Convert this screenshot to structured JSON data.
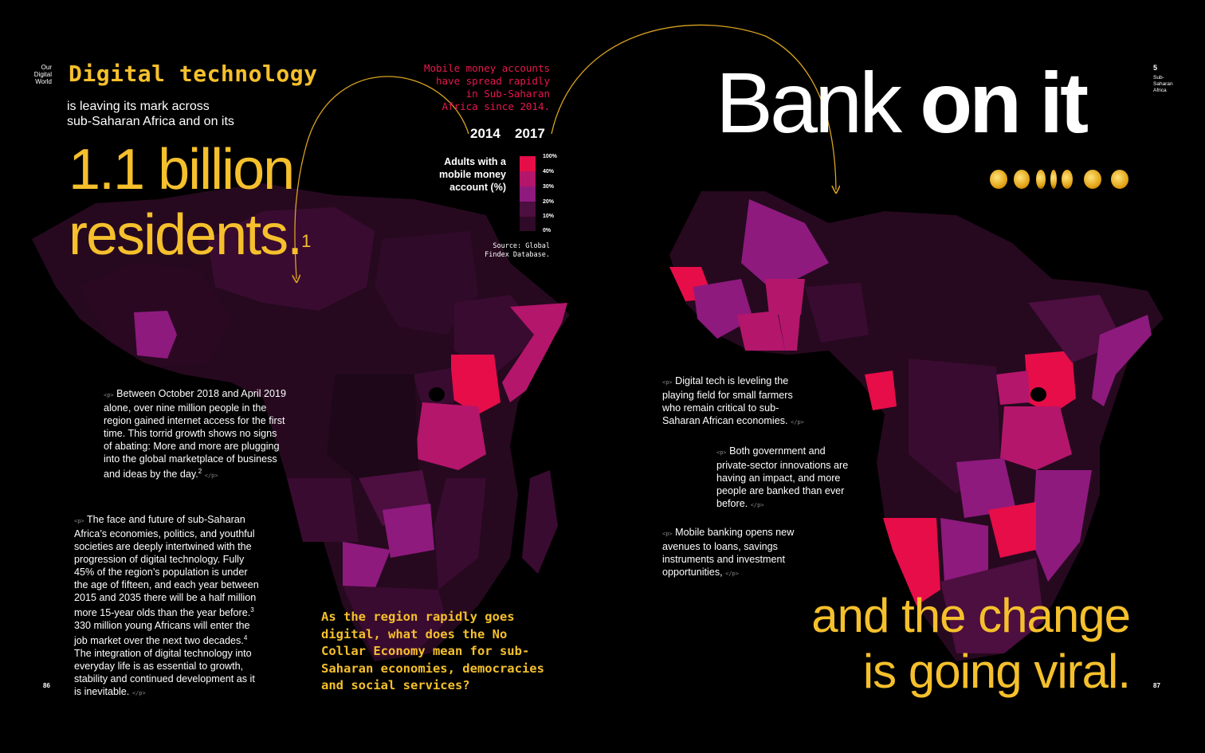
{
  "left_page": {
    "section_label": "Our Digital World",
    "section_lines": [
      "Our",
      "Digital",
      "World"
    ],
    "kicker": "Digital technology",
    "intro": [
      "is leaving its mark across",
      "sub-Saharan Africa and on its"
    ],
    "big_number_line1": "1.1 billion",
    "big_number_line2": "residents.",
    "big_number_footnote": "1",
    "paragraph1": "Between October 2018 and April 2019 alone, over nine million people in the region gained internet access for the first time. This torrid growth shows no signs of abating:  More and more are plugging into the global marketplace of business and ideas by the day.",
    "paragraph1_lines": [
      "Between October 2018 and April 2019",
      "alone, over nine million people in the",
      "region gained internet access for the first",
      "time. This torrid growth shows no signs",
      "of abating:  More and more are plugging",
      "into the global marketplace of business",
      "and ideas by the day."
    ],
    "paragraph1_footnote": "2",
    "paragraph2_lines": [
      "The face and future of sub-Saharan",
      "Africa’s economies, politics, and youthful",
      "societies are deeply intertwined with the",
      "progression of digital technology. Fully",
      "45% of the region’s population is under",
      "the age of fifteen, and each year between",
      "2015 and 2035 there will be a half million",
      "more 15-year olds than the year before.",
      "330 million young Africans will enter the",
      "job market over the next two decades.",
      "The integration of digital technology into",
      "everyday life is as essential to growth,",
      "stability and continued development as it",
      "is inevitable."
    ],
    "paragraph2_footnotes": [
      "3",
      "4"
    ],
    "question_lines": [
      "As the region rapidly goes",
      "digital, what does the No",
      "Collar Economy mean for sub-",
      "Saharan economies, democracies",
      "and social services?"
    ],
    "page_number": "86",
    "open_tag": "<p>",
    "close_tag": "</p>"
  },
  "legend": {
    "headline_lines": [
      "Mobile money accounts",
      "have spread rapidly",
      "in Sub-Saharan",
      "Africa since 2014."
    ],
    "year_left": "2014",
    "year_right": "2017",
    "label_lines": [
      "Adults with a",
      "mobile money",
      "account (%)"
    ],
    "ticks": [
      "100%",
      "40%",
      "30%",
      "20%",
      "10%",
      "0%"
    ],
    "colors": [
      "#e60d49",
      "#b4166b",
      "#8e1a7e",
      "#4d0e40",
      "#2f0a29",
      "#1d0718"
    ],
    "source_lines": [
      "Source: Global",
      "Findex Database."
    ]
  },
  "right_page": {
    "title_light": "Bank",
    "title_bold": "on it",
    "section_number": "5",
    "section_lines": [
      "Sub-",
      "Saharan",
      "Africa"
    ],
    "paragraph1_lines": [
      "Digital tech is leveling the",
      "playing field for small farmers",
      "who remain critical to sub-",
      "Saharan African economies."
    ],
    "paragraph2_lines": [
      "Both government and",
      "private-sector innovations are",
      "having an impact, and more",
      "people are banked than ever",
      "before."
    ],
    "paragraph3_lines": [
      "Mobile banking opens new",
      "avenues to loans, savings",
      "instruments and investment",
      "opportunities,"
    ],
    "closing_line1": "and the change",
    "closing_line2": "is going viral.",
    "page_number": "87",
    "coin_icon": "coin-icon"
  },
  "colors": {
    "background": "#000000",
    "accent_yellow": "#f5c02c",
    "accent_pink": "#e8174f",
    "arrow": "#d9a321"
  }
}
